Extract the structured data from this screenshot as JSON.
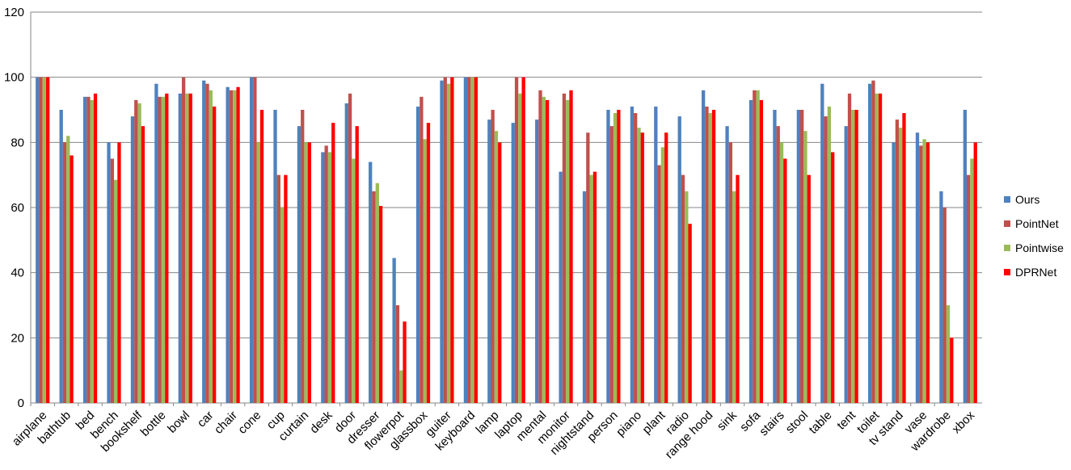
{
  "chart_data": {
    "type": "bar",
    "title": "",
    "xlabel": "",
    "ylabel": "",
    "ylim": [
      0,
      120
    ],
    "yticks": [
      0,
      20,
      40,
      60,
      80,
      100,
      120
    ],
    "grid": "horizontal",
    "legend_position": "right",
    "categories": [
      "airplane",
      "bathtub",
      "bed",
      "bench",
      "bookshelf",
      "bottle",
      "bowl",
      "car",
      "chair",
      "cone",
      "cup",
      "curtain",
      "desk",
      "door",
      "dresser",
      "flowerpot",
      "glassbox",
      "guiter",
      "keyboard",
      "lamp",
      "laptop",
      "mental",
      "monitor",
      "nightstand",
      "person",
      "piano",
      "plant",
      "radio",
      "range hood",
      "sink",
      "sofa",
      "stairs",
      "stool",
      "table",
      "tent",
      "toilet",
      "tv stand",
      "vase",
      "wardrobe",
      "xbox"
    ],
    "series": [
      {
        "name": "Ours",
        "color": "#4F81BD",
        "values": [
          100,
          90,
          94,
          80,
          88,
          98,
          95,
          99,
          97,
          100,
          90,
          85,
          77,
          92,
          74,
          44.5,
          91,
          99,
          100,
          87,
          86,
          87,
          71,
          65,
          90,
          91,
          91,
          88,
          96,
          85,
          93,
          90,
          90,
          98,
          85,
          98,
          80,
          83,
          65,
          90
        ]
      },
      {
        "name": "PointNet",
        "color": "#C0504D",
        "values": [
          100,
          80,
          94,
          75,
          93,
          94,
          100,
          98,
          96,
          100,
          70,
          90,
          79,
          95,
          65,
          30,
          94,
          100,
          100,
          90,
          100,
          96,
          95,
          83,
          85,
          89,
          73,
          70,
          91,
          80,
          96,
          85,
          90,
          88,
          95,
          99,
          87,
          79,
          60,
          70
        ]
      },
      {
        "name": "Pointwise",
        "color": "#9BBB59",
        "values": [
          100,
          82,
          93,
          68.5,
          92,
          94,
          95,
          96,
          96,
          80,
          60,
          80,
          77,
          75,
          67.5,
          10,
          81,
          98,
          100,
          83.5,
          95,
          94,
          93,
          70,
          89,
          84.5,
          78.5,
          65,
          89,
          65,
          96,
          80,
          83.5,
          91,
          90,
          95,
          84.5,
          81,
          30,
          75
        ]
      },
      {
        "name": "DPRNet",
        "color": "#FF0000",
        "values": [
          100,
          76,
          95,
          80,
          85,
          95,
          95,
          91,
          97,
          90,
          70,
          80,
          86,
          85,
          60.5,
          25,
          86,
          100,
          100,
          80,
          100,
          93,
          96,
          71,
          90,
          83,
          83,
          55,
          90,
          70,
          93,
          75,
          70,
          77,
          90,
          95,
          89,
          80,
          20,
          80
        ]
      }
    ]
  }
}
